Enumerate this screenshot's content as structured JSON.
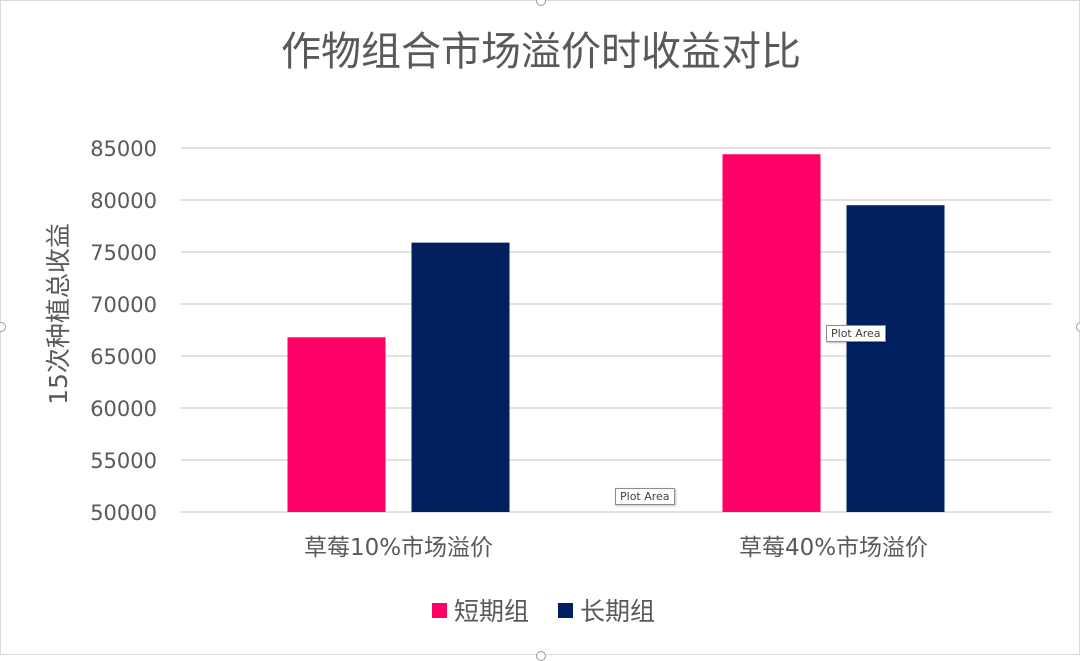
{
  "chart_data": {
    "type": "bar",
    "title": "作物组合市场溢价时收益对比",
    "ylabel": "15次种植总收益",
    "xlabel": "",
    "categories": [
      "草莓10%市场溢价",
      "草莓40%市场溢价"
    ],
    "series": [
      {
        "name": "短期组",
        "values": [
          66800,
          84400
        ],
        "color": "#FF0066"
      },
      {
        "name": "长期组",
        "values": [
          75900,
          79500
        ],
        "color": "#002060"
      }
    ],
    "ylim": [
      50000,
      85000
    ],
    "yticks": [
      50000,
      55000,
      60000,
      65000,
      70000,
      75000,
      80000,
      85000
    ],
    "grid": true,
    "legend": "bottom"
  },
  "tooltips": [
    "Plot Area",
    "Plot Area"
  ],
  "colors": {
    "grid": "#D9D9D9",
    "text": "#595959",
    "title": "#595959"
  }
}
